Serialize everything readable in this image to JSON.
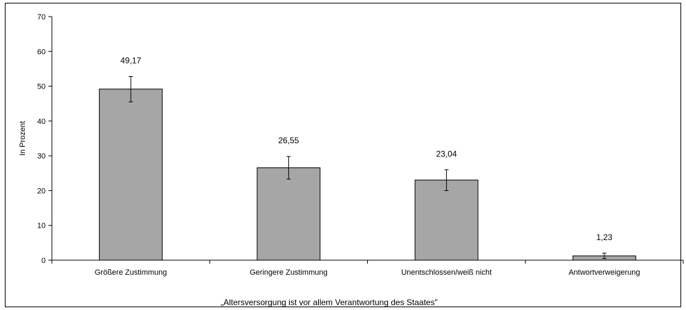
{
  "chart_data": {
    "type": "bar",
    "categories": [
      "Größere Zustimmung",
      "Geringere Zustimmung",
      "Unentschlossen/weiß nicht",
      "Antwortverweigerung"
    ],
    "values": [
      49.17,
      26.55,
      23.04,
      1.23
    ],
    "value_labels": [
      "49,17",
      "26,55",
      "23,04",
      "1,23"
    ],
    "error_bars": [
      [
        45.5,
        52.8
      ],
      [
        23.3,
        29.8
      ],
      [
        20.0,
        26.0
      ],
      [
        0.5,
        2.0
      ]
    ],
    "xlabel": "„Altersversorgung ist vor allem Verantwortung des Staates\"",
    "ylabel": "In Prozent",
    "ylim": [
      0,
      70
    ],
    "yticks": [
      0,
      10,
      20,
      30,
      40,
      50,
      60,
      70
    ],
    "grid": false,
    "legend": "none",
    "colors": {
      "bar_fill": "#a6a6a6",
      "bar_stroke": "#000000",
      "axis": "#000000"
    }
  }
}
